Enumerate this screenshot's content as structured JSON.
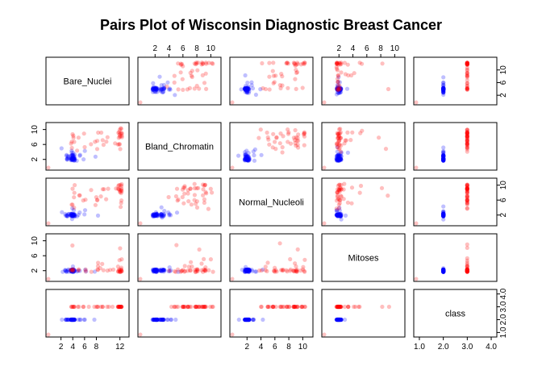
{
  "chart_data": {
    "type": "scatter",
    "title": "Pairs Plot of Wisconsin Diagnostic Breast Cancer",
    "variables": [
      "Bare_Nuclei",
      "Bland_Chromatin",
      "Normal_Nucleoli",
      "Mitoses",
      "class"
    ],
    "ranges": {
      "Bare_Nuclei": [
        0,
        13
      ],
      "Bland_Chromatin": [
        0,
        11
      ],
      "Normal_Nucleoli": [
        0,
        11
      ],
      "Mitoses": [
        0,
        11
      ],
      "class": [
        0.9,
        4.1
      ]
    },
    "axis_ticks": {
      "Bare_Nuclei": [
        2,
        4,
        6,
        8,
        12
      ],
      "Bland_Chromatin": [
        2,
        6,
        10
      ],
      "Normal_Nucleoli": [
        2,
        4,
        6,
        8,
        10
      ],
      "Mitoses": [
        2,
        6,
        10
      ],
      "class": [
        1.0,
        2.0,
        3.0,
        4.0
      ]
    },
    "top_axes": [
      {
        "var": "Bland_Chromatin",
        "ticks": [
          2,
          4,
          6,
          8,
          10
        ]
      },
      {
        "var": "Mitoses",
        "ticks": [
          2,
          4,
          6,
          8,
          10
        ]
      }
    ],
    "bottom_axes": [
      {
        "var": "Bare_Nuclei",
        "ticks": [
          2,
          4,
          6,
          8,
          12
        ]
      },
      {
        "var": "Normal_Nucleoli",
        "ticks": [
          2,
          4,
          6,
          8,
          10
        ]
      },
      {
        "var": "class",
        "ticks": [
          1.0,
          2.0,
          3.0,
          4.0
        ]
      }
    ],
    "left_axes": [
      {
        "var": "Bland_Chromatin",
        "ticks": [
          2,
          6,
          10
        ]
      },
      {
        "var": "Mitoses",
        "ticks": [
          2,
          6,
          10
        ]
      }
    ],
    "right_axes": [
      {
        "var": "Bare_Nuclei",
        "ticks": [
          2,
          6,
          10
        ]
      },
      {
        "var": "Normal_Nucleoli",
        "ticks": [
          2,
          6,
          10
        ]
      },
      {
        "var": "class",
        "ticks": [
          1.0,
          2.0,
          3.0,
          4.0
        ]
      }
    ],
    "classes": [
      {
        "value": 2,
        "color": "#0000ff",
        "alpha": 0.25
      },
      {
        "value": 3,
        "color": "#ff0000",
        "alpha": 0.25
      }
    ],
    "outlier_color": "#ff9999",
    "points": [
      [
        4,
        2,
        2,
        2,
        2
      ],
      [
        4,
        2,
        2,
        2,
        2
      ],
      [
        4,
        3,
        2,
        2,
        2
      ],
      [
        4,
        3,
        1,
        2,
        2
      ],
      [
        4,
        2,
        2,
        2,
        2
      ],
      [
        3,
        2,
        2,
        2,
        2
      ],
      [
        4,
        3,
        2,
        2,
        2
      ],
      [
        3,
        2,
        2,
        2,
        2
      ],
      [
        4,
        2,
        2,
        2,
        2
      ],
      [
        4,
        3,
        2,
        2,
        2
      ],
      [
        4,
        3,
        2,
        2,
        2
      ],
      [
        3,
        2,
        2,
        2,
        2
      ],
      [
        4,
        2,
        2,
        2,
        2
      ],
      [
        4,
        2,
        2,
        2,
        2
      ],
      [
        5,
        3,
        3,
        2,
        2
      ],
      [
        4,
        2,
        2,
        2,
        2
      ],
      [
        3,
        3,
        2,
        2,
        2
      ],
      [
        4,
        2,
        2,
        2,
        2
      ],
      [
        4,
        2,
        2,
        2,
        2
      ],
      [
        4,
        2,
        2,
        2,
        2
      ],
      [
        3,
        3,
        2,
        2,
        2
      ],
      [
        4,
        2,
        2,
        2,
        2
      ],
      [
        5,
        2,
        2,
        2,
        2
      ],
      [
        4,
        3,
        2,
        2,
        2
      ],
      [
        4,
        2,
        2,
        2,
        2
      ],
      [
        4,
        4,
        2,
        2,
        2
      ],
      [
        3,
        3,
        2,
        2,
        2
      ],
      [
        4,
        2,
        2,
        2,
        2
      ],
      [
        4,
        2,
        2,
        2,
        2
      ],
      [
        4,
        3,
        2,
        2,
        2
      ],
      [
        4,
        2,
        2,
        2,
        2
      ],
      [
        6,
        4,
        3,
        2,
        2
      ],
      [
        4,
        2,
        2,
        2,
        2
      ],
      [
        4,
        3,
        4,
        2,
        2
      ],
      [
        3,
        2,
        2,
        2,
        2
      ],
      [
        4,
        2,
        2,
        2,
        2
      ],
      [
        2,
        5,
        3,
        2,
        2
      ],
      [
        4,
        3,
        2,
        2,
        2
      ],
      [
        6,
        2,
        2,
        2,
        2
      ],
      [
        4,
        4,
        2,
        2,
        2
      ],
      [
        5,
        3,
        2,
        2,
        2
      ],
      [
        4,
        2,
        2,
        2,
        2
      ],
      [
        3,
        2,
        2,
        2,
        2
      ],
      [
        4,
        2,
        2,
        2,
        2
      ],
      [
        4,
        3,
        2,
        2,
        2
      ],
      [
        4,
        2,
        2,
        2,
        2
      ],
      [
        4,
        2,
        2,
        2,
        2
      ],
      [
        4,
        2,
        2,
        2,
        2
      ],
      [
        3,
        3,
        2,
        2,
        2
      ],
      [
        4,
        2,
        3,
        2,
        2
      ],
      [
        4,
        2,
        2,
        2,
        2
      ],
      [
        4,
        2,
        2,
        2,
        2
      ],
      [
        4,
        3,
        2,
        2,
        2
      ],
      [
        4,
        2,
        2,
        2,
        2
      ],
      [
        4,
        2,
        2,
        2,
        2
      ],
      [
        4,
        3,
        2,
        2,
        2
      ],
      [
        8,
        3,
        2,
        2,
        2
      ],
      [
        4,
        2,
        2,
        2,
        2
      ],
      [
        4,
        4,
        2,
        3,
        2
      ],
      [
        4,
        2,
        2,
        2,
        2
      ],
      [
        12,
        8,
        9,
        2,
        3
      ],
      [
        12,
        6,
        10,
        3,
        3
      ],
      [
        8,
        9,
        7,
        2,
        3
      ],
      [
        12,
        8,
        10,
        2,
        3
      ],
      [
        12,
        9,
        5,
        3,
        3
      ],
      [
        8,
        5,
        6,
        2,
        3
      ],
      [
        10,
        7,
        9,
        2,
        3
      ],
      [
        12,
        8,
        9,
        2,
        3
      ],
      [
        6,
        5,
        6,
        2,
        3
      ],
      [
        12,
        9,
        8,
        2,
        3
      ],
      [
        9,
        7,
        9,
        3,
        3
      ],
      [
        12,
        10,
        4,
        2,
        3
      ],
      [
        5,
        8,
        7,
        2,
        3
      ],
      [
        12,
        6,
        9,
        2,
        3
      ],
      [
        8,
        7,
        5,
        4,
        3
      ],
      [
        12,
        9,
        10,
        2,
        3
      ],
      [
        12,
        8,
        9,
        8,
        3
      ],
      [
        9,
        6,
        7,
        2,
        3
      ],
      [
        12,
        9,
        10,
        5,
        3
      ],
      [
        4,
        7,
        8,
        2,
        3
      ],
      [
        4,
        6,
        5,
        2,
        3
      ],
      [
        12,
        8,
        6,
        2,
        3
      ],
      [
        6,
        9,
        6,
        2,
        3
      ],
      [
        12,
        10,
        9,
        2,
        3
      ],
      [
        11,
        6,
        9,
        2,
        3
      ],
      [
        4,
        8,
        4,
        2,
        3
      ],
      [
        12,
        9,
        8,
        2,
        3
      ],
      [
        5,
        4,
        7,
        2,
        3
      ],
      [
        4,
        9,
        10,
        2,
        3
      ],
      [
        12,
        5,
        9,
        2,
        3
      ],
      [
        8,
        7,
        6,
        3,
        3
      ],
      [
        4,
        5,
        7,
        9,
        3
      ],
      [
        12,
        9,
        10,
        2,
        3
      ],
      [
        7,
        6,
        9,
        2,
        3
      ],
      [
        4,
        8,
        5,
        2,
        3
      ],
      [
        12,
        10,
        8,
        5,
        3
      ],
      [
        10,
        8,
        6,
        2,
        3
      ],
      [
        4,
        7,
        9,
        2,
        3
      ],
      [
        12,
        6,
        8,
        2,
        3
      ],
      [
        9,
        9,
        9,
        4,
        3
      ]
    ]
  }
}
